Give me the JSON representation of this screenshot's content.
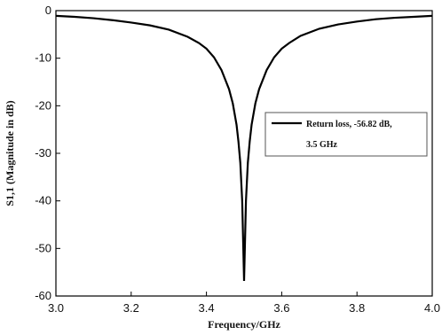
{
  "chart_data": {
    "type": "line",
    "xlabel": "Frequency/GHz",
    "ylabel": "S1,1 (Magnitude in dB)",
    "xlim": [
      3.0,
      4.0
    ],
    "ylim": [
      -60,
      0
    ],
    "xticks": [
      "3.0",
      "3.2",
      "3.4",
      "3.6",
      "3.8",
      "4.0"
    ],
    "yticks": [
      "0",
      "-10",
      "-20",
      "-30",
      "-40",
      "-50",
      "-60"
    ],
    "legend_position": "right",
    "grid": false,
    "series": [
      {
        "name": "Return loss, -56.82 dB, 3.5 GHz",
        "color": "#000000",
        "x": [
          3.0,
          3.05,
          3.1,
          3.15,
          3.2,
          3.25,
          3.3,
          3.35,
          3.38,
          3.4,
          3.42,
          3.44,
          3.46,
          3.47,
          3.48,
          3.485,
          3.49,
          3.495,
          3.5,
          3.505,
          3.51,
          3.515,
          3.52,
          3.53,
          3.54,
          3.56,
          3.58,
          3.6,
          3.62,
          3.65,
          3.7,
          3.75,
          3.8,
          3.85,
          3.9,
          3.95,
          4.0
        ],
        "y": [
          -1.1,
          -1.3,
          -1.6,
          -2.0,
          -2.5,
          -3.1,
          -4.0,
          -5.5,
          -6.8,
          -8.0,
          -9.8,
          -12.5,
          -16.5,
          -19.5,
          -24.0,
          -27.5,
          -32.0,
          -40.0,
          -56.82,
          -40.0,
          -32.0,
          -27.5,
          -24.0,
          -19.5,
          -16.5,
          -12.5,
          -9.8,
          -8.0,
          -6.8,
          -5.3,
          -3.8,
          -2.9,
          -2.3,
          -1.8,
          -1.5,
          -1.3,
          -1.1
        ]
      }
    ],
    "legend_lines": [
      "Return loss, -56.82 dB,",
      "3.5 GHz"
    ]
  }
}
